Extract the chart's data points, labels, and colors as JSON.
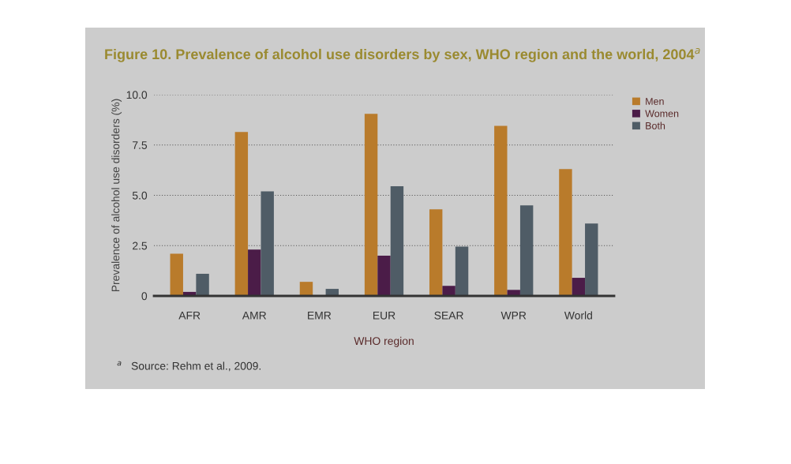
{
  "chart_data": {
    "type": "bar",
    "title": "Figure 10. Prevalence of alcohol use disorders by sex, WHO region and the world, 2004$^{a}$",
    "xlabel": "WHO region",
    "ylabel": "Prevalence of alcohol use disorders (%)",
    "annotations": [
      "$^{a}$   Source: Rehm et al., 2009."
    ],
    "categories": [
      "AFR",
      "AMR",
      "EMR",
      "EUR",
      "SEAR",
      "WPR",
      "World"
    ],
    "series": [
      {
        "name": "Men",
        "color": "#b97b2b",
        "values": [
          2.1,
          8.15,
          0.7,
          9.05,
          4.3,
          8.45,
          6.3
        ]
      },
      {
        "name": "Women",
        "color": "#4b1c48",
        "values": [
          0.2,
          2.3,
          0,
          2.0,
          0.5,
          0.3,
          0.9
        ]
      },
      {
        "name": "Both",
        "color": "#4f5c66",
        "values": [
          1.1,
          5.2,
          0.35,
          5.45,
          2.45,
          4.5,
          3.6
        ]
      }
    ],
    "ylim": [
      0,
      10
    ],
    "yticks": [
      0,
      2.5,
      {
        "value": 5,
        "label": "5.0"
      },
      7.5,
      {
        "value": 10,
        "label": "10.0"
      }
    ],
    "grid": "y",
    "legend": "top right"
  }
}
